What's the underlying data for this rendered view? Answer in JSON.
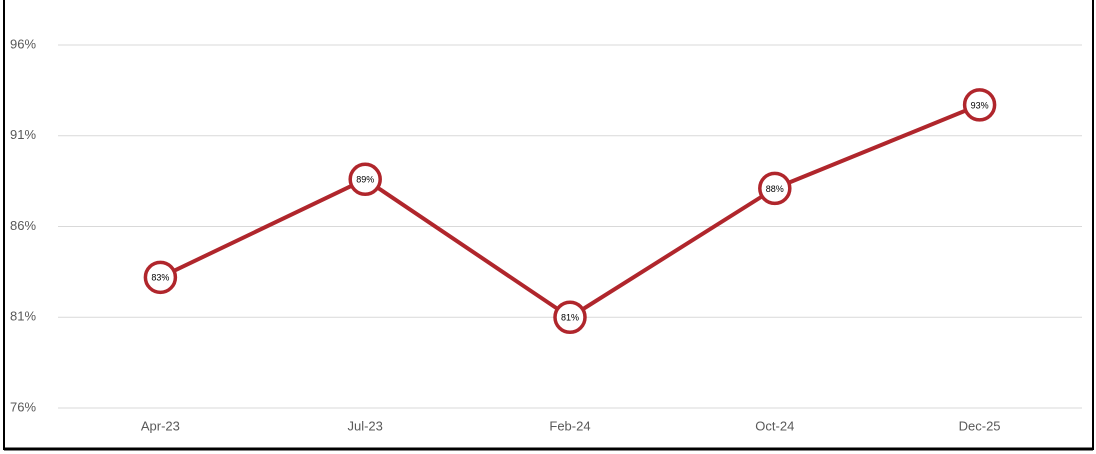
{
  "chart_data": {
    "type": "line",
    "categories": [
      "Apr-23",
      "Jul-23",
      "Feb-24",
      "Oct-24",
      "Dec-25"
    ],
    "series": [
      {
        "color": "#b0262c",
        "values": [
          83.2,
          88.6,
          81.0,
          88.1,
          92.7
        ],
        "value_labels": [
          "83%",
          "89%",
          "81%",
          "88%",
          "93%"
        ]
      }
    ],
    "ylim": [
      76,
      96
    ],
    "yticks": [
      {
        "value": 76,
        "label": "76%"
      },
      {
        "value": 81,
        "label": "81%"
      },
      {
        "value": 86,
        "label": "86%"
      },
      {
        "value": 91,
        "label": "91%"
      },
      {
        "value": 96,
        "label": "96%"
      }
    ],
    "grid": true
  }
}
